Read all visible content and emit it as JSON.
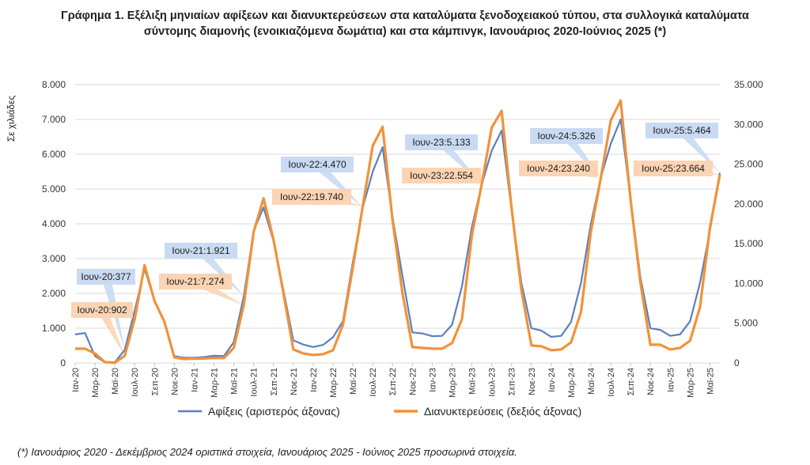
{
  "title_line1": "Γράφημα 1. Εξέλιξη μηνιαίων αφίξεων και διανυκτερεύσεων στα καταλύματα ξενοδοχειακού τύπου, στα συλλογικά καταλύματα",
  "title_line2": "σύντομης διαμονής (ενοικιαζόμενα δωμάτια) και στα κάμπινγκ, Ιανουάριος 2020-Ιούνιος 2025 (*)",
  "footnote": "(*) Ιανουάριος 2020 - Δεκέμβριος 2024 οριστικά στοιχεία, Ιανουάριος 2025 - Ιούνιος 2025 προσωρινά στοιχεία.",
  "chart_data": {
    "type": "line",
    "ylabel_left": "Σε χιλιάδες",
    "left_ylim": [
      0,
      8000
    ],
    "left_ticks": [
      "0",
      "1.000",
      "2.000",
      "3.000",
      "4.000",
      "5.000",
      "6.000",
      "7.000",
      "8.000"
    ],
    "right_ylim": [
      0,
      35000
    ],
    "right_ticks": [
      "0",
      "5.000",
      "10.000",
      "15.000",
      "20.000",
      "25.000",
      "30.000",
      "35.000"
    ],
    "x_tick_labels": [
      "Ιαν-20",
      "Μαρ-20",
      "Μαϊ-20",
      "Ιουλ-20",
      "Σεπ-20",
      "Νοε-20",
      "Ιαν-21",
      "Μαρ-21",
      "Μαϊ-21",
      "Ιουλ-21",
      "Σεπ-21",
      "Νοε-21",
      "Ιαν-22",
      "Μαρ-22",
      "Μαϊ-22",
      "Ιουλ-22",
      "Σεπ-22",
      "Νοε-22",
      "Ιαν-23",
      "Μαρ-23",
      "Μαϊ-23",
      "Ιουλ-23",
      "Σεπ-23",
      "Νοε-23",
      "Ιαν-24",
      "Μαρ-24",
      "Μαϊ-24",
      "Ιουλ-24",
      "Σεπ-24",
      "Νοε-24",
      "Ιαν-25",
      "Μαρ-25",
      "Μαϊ-25"
    ],
    "grid": "horizontal",
    "legend_position": "bottom",
    "series": [
      {
        "name": "Αφίξεις (αριστερός άξονας)",
        "axis": "left",
        "color": "#5b7fbf",
        "values": [
          820,
          860,
          200,
          20,
          20,
          377,
          1500,
          2700,
          1800,
          1200,
          200,
          150,
          150,
          170,
          210,
          200,
          600,
          1921,
          3800,
          4470,
          3500,
          2100,
          650,
          530,
          460,
          520,
          740,
          1200,
          2900,
          4470,
          5500,
          6200,
          4200,
          2500,
          880,
          850,
          770,
          780,
          1100,
          2200,
          3900,
          5133,
          6100,
          6680,
          4400,
          2300,
          1000,
          930,
          750,
          780,
          1180,
          2300,
          4000,
          5326,
          6300,
          7000,
          4700,
          2450,
          1000,
          950,
          780,
          820,
          1200,
          2300,
          3800,
          5464
        ]
      },
      {
        "name": "Διανυκτερεύσεις (δεξιός άξονας)",
        "axis": "right",
        "color": "#f0923a",
        "values": [
          1800,
          1800,
          1200,
          100,
          50,
          902,
          5500,
          12300,
          7800,
          5200,
          700,
          500,
          550,
          560,
          650,
          620,
          1900,
          7274,
          16500,
          20700,
          15500,
          8800,
          1700,
          1200,
          1000,
          1100,
          1600,
          4800,
          12000,
          19740,
          27300,
          29700,
          18000,
          8800,
          2000,
          1900,
          1800,
          1800,
          2500,
          5500,
          16000,
          22554,
          29600,
          31700,
          19500,
          9100,
          2200,
          2100,
          1600,
          1700,
          2600,
          6400,
          16500,
          23240,
          30500,
          33000,
          20500,
          10000,
          2300,
          2300,
          1700,
          1900,
          2800,
          7000,
          17000,
          23664
        ]
      }
    ],
    "annotations": [
      {
        "text": "Ιουν-20:377",
        "series": "Αφίξεις (αριστερός άξονας)",
        "month_index": 5
      },
      {
        "text": "Ιουν-20:902",
        "series": "Διανυκτερεύσεις (δεξιός άξονας)",
        "month_index": 5
      },
      {
        "text": "Ιουν-21:1.921",
        "series": "Αφίξεις (αριστερός άξονας)",
        "month_index": 17
      },
      {
        "text": "Ιουν-21:7.274",
        "series": "Διανυκτερεύσεις (δεξιός άξονας)",
        "month_index": 17
      },
      {
        "text": "Ιουν-22:4.470",
        "series": "Αφίξεις (αριστερός άξονας)",
        "month_index": 29
      },
      {
        "text": "Ιουν-22:19.740",
        "series": "Διανυκτερεύσεις (δεξιός άξονας)",
        "month_index": 29
      },
      {
        "text": "Ιουν-23:5.133",
        "series": "Αφίξεις (αριστερός άξονας)",
        "month_index": 41
      },
      {
        "text": "Ιουν-23:22.554",
        "series": "Διανυκτερεύσεις (δεξιός άξονας)",
        "month_index": 41
      },
      {
        "text": "Ιουν-24:5.326",
        "series": "Αφίξεις (αριστερός άξονας)",
        "month_index": 53
      },
      {
        "text": "Ιουν-24:23.240",
        "series": "Διανυκτερεύσεις (δεξιός άξονας)",
        "month_index": 53
      },
      {
        "text": "Ιουν-25:5.464",
        "series": "Αφίξεις (αριστερός άξονας)",
        "month_index": 65
      },
      {
        "text": "Ιουν-25:23.664",
        "series": "Διανυκτερεύσεις (δεξιός άξονας)",
        "month_index": 65
      }
    ]
  }
}
